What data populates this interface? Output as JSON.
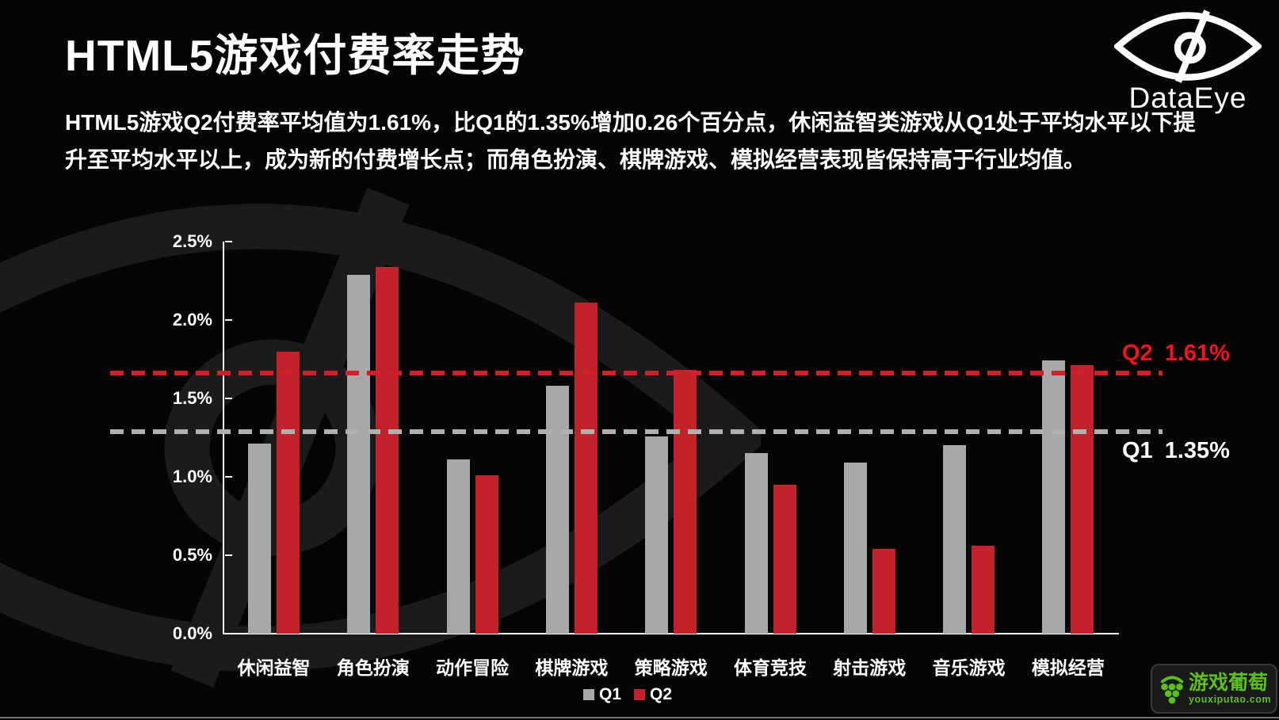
{
  "header": {
    "title": "HTML5游戏付费率走势",
    "description_line1": "HTML5游戏Q2付费率平均值为1.61%，比Q1的1.35%增加0.26个百分点，休闲益智类游戏从Q1处于平均水平以下提",
    "description_line2": "升至平均水平以上，成为新的付费增长点；而角色扮演、棋牌游戏、模拟经营表现皆保持高于行业均值。"
  },
  "branding": {
    "wordmark": "DataEye"
  },
  "footer_logo": {
    "name": "游戏葡萄",
    "domain": "youxiputao.com"
  },
  "colors": {
    "background": "#050505",
    "text": "#ffffff",
    "q1_gray": "#a8a8a8",
    "q2_red": "#c2232a",
    "axis": "#f2f2f2",
    "brand_green": "#5cbe21",
    "watermark": "#1b1b1b"
  },
  "chart_data": {
    "type": "bar",
    "categories": [
      "休闲益智",
      "角色扮演",
      "动作冒险",
      "棋牌游戏",
      "策略游戏",
      "体育竞技",
      "射击游戏",
      "音乐游戏",
      "模拟经营"
    ],
    "series": [
      {
        "name": "Q1",
        "color": "#a8a8a8",
        "values": [
          1.21,
          2.29,
          1.11,
          1.58,
          1.26,
          1.15,
          1.09,
          1.2,
          1.74
        ]
      },
      {
        "name": "Q2",
        "color": "#c2232a",
        "values": [
          1.8,
          2.34,
          1.01,
          2.11,
          1.68,
          0.95,
          0.54,
          0.56,
          1.71
        ]
      }
    ],
    "unit": "%",
    "ylim": [
      0,
      2.5
    ],
    "y_ticks": [
      "0.0%",
      "0.5%",
      "1.0%",
      "1.5%",
      "2.0%",
      "2.5%"
    ],
    "grid": false,
    "legend_position": "bottom",
    "reference_lines": [
      {
        "series": "Q2",
        "value": 1.61,
        "value_label": "1.61%",
        "line_level_pct": 1.66,
        "line_color": "#ce2129",
        "label_color": "#f2131c",
        "label_position": "above"
      },
      {
        "series": "Q1",
        "value": 1.35,
        "value_label": "1.35%",
        "line_level_pct": 1.29,
        "line_color": "#b0b0b0",
        "label_color": "#ffffff",
        "label_position": "below"
      }
    ]
  }
}
